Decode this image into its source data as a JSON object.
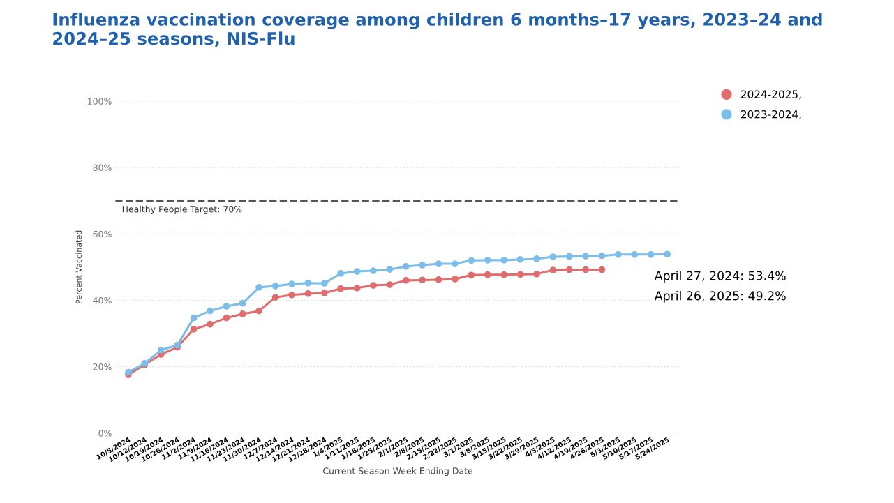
{
  "chart_data": {
    "type": "line",
    "title": "Influenza vaccination coverage among children 6 months–17 years, 2023–24 and 2024–25 seasons, NIS-Flu",
    "xlabel": "Current Season Week Ending Date",
    "ylabel": "Percent Vaccinated",
    "categories": [
      "10/5/2024",
      "10/12/2024",
      "10/19/2024",
      "10/26/2024",
      "11/2/2024",
      "11/9/2024",
      "11/16/2024",
      "11/23/2024",
      "11/30/2024",
      "12/7/2024",
      "12/14/2024",
      "12/21/2024",
      "12/28/2024",
      "1/4/2025",
      "1/11/2025",
      "1/18/2025",
      "1/25/2025",
      "2/1/2025",
      "2/8/2025",
      "2/15/2025",
      "2/22/2025",
      "3/1/2025",
      "3/8/2025",
      "3/15/2025",
      "3/22/2025",
      "3/29/2025",
      "4/5/2025",
      "4/12/2025",
      "4/19/2025",
      "4/26/2025",
      "5/3/2025",
      "5/10/2025",
      "5/17/2025",
      "5/24/2025"
    ],
    "series": [
      {
        "name": "2024-2025,",
        "color": "#e06c6e",
        "values": [
          17.6,
          20.6,
          23.7,
          25.9,
          31.3,
          32.8,
          34.7,
          35.9,
          36.8,
          40.9,
          41.6,
          42.0,
          42.2,
          43.5,
          43.7,
          44.5,
          44.7,
          46.0,
          46.1,
          46.2,
          46.4,
          47.6,
          47.7,
          47.7,
          47.8,
          47.9,
          49.1,
          49.2,
          49.2,
          49.2,
          null,
          null,
          null,
          null
        ]
      },
      {
        "name": "2023-2024,",
        "color": "#7dbde9",
        "values": [
          18.3,
          21.0,
          25.0,
          26.5,
          34.7,
          36.8,
          38.2,
          39.1,
          43.9,
          44.3,
          44.9,
          45.2,
          45.1,
          48.1,
          48.7,
          48.9,
          49.3,
          50.2,
          50.6,
          51.0,
          51.0,
          52.0,
          52.1,
          52.1,
          52.3,
          52.5,
          53.1,
          53.2,
          53.3,
          53.4,
          53.8,
          53.8,
          53.8,
          53.9
        ]
      }
    ],
    "ylim": [
      0,
      100
    ],
    "yticks": [
      {
        "value": 0,
        "label": "0%"
      },
      {
        "value": 20,
        "label": "20%"
      },
      {
        "value": 40,
        "label": "40%"
      },
      {
        "value": 60,
        "label": "60%"
      },
      {
        "value": 80,
        "label": "80%"
      },
      {
        "value": 100,
        "label": "100%"
      }
    ],
    "ref_lines": [
      {
        "axis": "y",
        "value": 70,
        "label": "Healthy People Target: 70%",
        "color": "#555555",
        "line_style": "dashed"
      }
    ],
    "annotations": [
      "April 27, 2024: 53.4%",
      "April 26, 2025: 49.2%"
    ],
    "grid": "y",
    "legend": "top right",
    "marker": "circle",
    "line_style": "solid"
  }
}
